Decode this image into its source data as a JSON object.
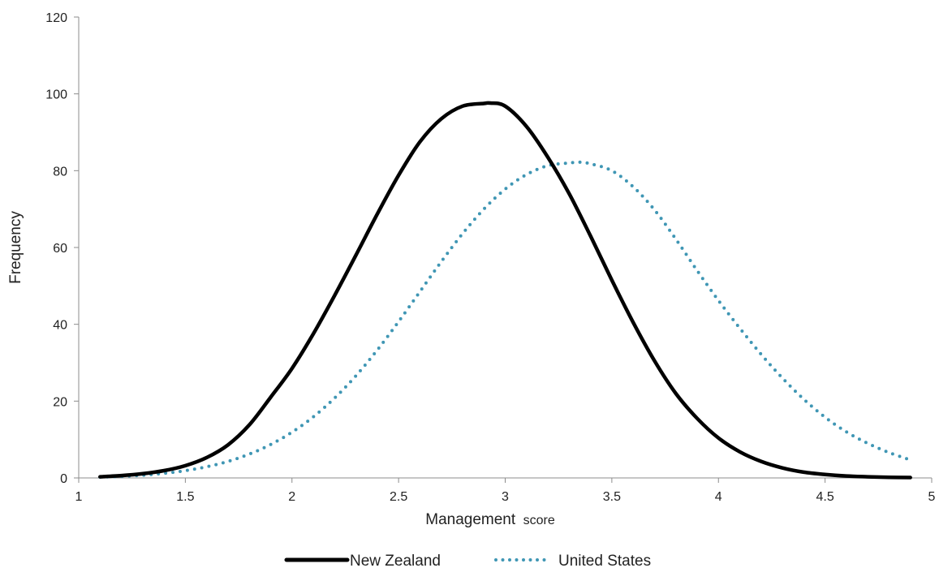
{
  "chart_data": {
    "type": "line",
    "xlabel": "Management score",
    "xlabel_main": "Management",
    "xlabel_suffix": "score",
    "ylabel": "Frequency",
    "xlim": [
      1,
      5
    ],
    "ylim": [
      0,
      120
    ],
    "xticks": [
      1,
      1.5,
      2,
      2.5,
      3,
      3.5,
      4,
      4.5,
      5
    ],
    "yticks": [
      0,
      20,
      40,
      60,
      80,
      100,
      120
    ],
    "xtick_labels": [
      "1",
      "1.5",
      "2",
      "2.5",
      "3",
      "3.5",
      "4",
      "4.5",
      "5"
    ],
    "ytick_labels": [
      "0",
      "20",
      "40",
      "60",
      "80",
      "100",
      "120"
    ],
    "grid": false,
    "legend": "bottom",
    "series": [
      {
        "name": "New Zealand",
        "color": "#000000",
        "style": "solid",
        "x": [
          1.1,
          1.2,
          1.3,
          1.4,
          1.5,
          1.6,
          1.7,
          1.8,
          1.9,
          2.0,
          2.1,
          2.2,
          2.3,
          2.4,
          2.5,
          2.6,
          2.7,
          2.8,
          2.9,
          2.93,
          3.0,
          3.1,
          3.2,
          3.3,
          3.4,
          3.5,
          3.6,
          3.7,
          3.8,
          3.9,
          4.0,
          4.1,
          4.2,
          4.3,
          4.4,
          4.5,
          4.6,
          4.7,
          4.8,
          4.9
        ],
        "y": [
          0.3,
          0.6,
          1.1,
          1.9,
          3.2,
          5.3,
          8.6,
          13.8,
          21.0,
          28.5,
          37.5,
          47.5,
          58.0,
          68.7,
          78.8,
          87.5,
          93.5,
          96.8,
          97.5,
          97.6,
          96.8,
          91.5,
          83.5,
          74.0,
          63.0,
          51.5,
          40.5,
          30.5,
          22.0,
          15.5,
          10.4,
          6.8,
          4.3,
          2.6,
          1.5,
          0.9,
          0.5,
          0.3,
          0.15,
          0.1
        ]
      },
      {
        "name": "United States",
        "color": "#3f96b4",
        "style": "dotted",
        "x": [
          1.1,
          1.2,
          1.3,
          1.4,
          1.5,
          1.6,
          1.7,
          1.8,
          1.9,
          2.0,
          2.1,
          2.2,
          2.3,
          2.4,
          2.5,
          2.6,
          2.7,
          2.8,
          2.9,
          3.0,
          3.1,
          3.2,
          3.3,
          3.35,
          3.4,
          3.5,
          3.6,
          3.7,
          3.8,
          3.9,
          4.0,
          4.1,
          4.2,
          4.3,
          4.4,
          4.5,
          4.6,
          4.7,
          4.8,
          4.9
        ],
        "y": [
          0.2,
          0.4,
          0.7,
          1.2,
          1.9,
          2.9,
          4.3,
          6.2,
          8.7,
          11.9,
          15.9,
          20.8,
          26.6,
          33.3,
          40.7,
          48.5,
          56.3,
          63.6,
          70.0,
          75.2,
          79.0,
          81.3,
          82.0,
          82.2,
          81.8,
          80.0,
          75.8,
          69.8,
          62.2,
          54.0,
          46.2,
          39.0,
          32.2,
          26.0,
          20.5,
          15.8,
          12.0,
          9.0,
          6.6,
          4.7
        ]
      }
    ]
  }
}
